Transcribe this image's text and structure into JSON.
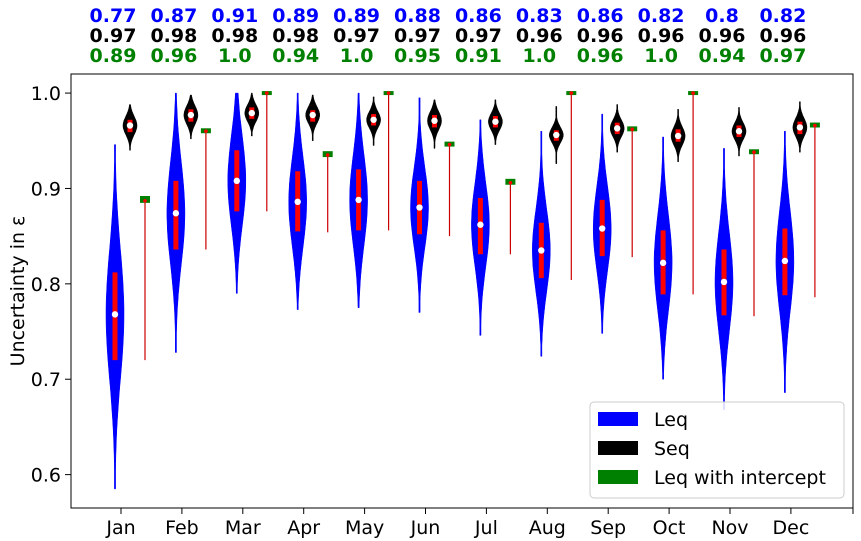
{
  "chart_data": {
    "type": "violin",
    "ylabel": "Uncertainty in ε",
    "ylim": [
      0.565,
      1.02
    ],
    "yticks": [
      "0.6",
      "0.7",
      "0.8",
      "0.9",
      "1.0"
    ],
    "categories": [
      "Jan",
      "Feb",
      "Mar",
      "Apr",
      "May",
      "Jun",
      "Jul",
      "Aug",
      "Sep",
      "Oct",
      "Nov",
      "Dec"
    ],
    "legend": {
      "position": "lower-right",
      "entries": [
        "Leq",
        "Seq",
        "Leq with intercept"
      ]
    },
    "top_stats": [
      {
        "name": "Leq",
        "color": "#0000ff",
        "values": [
          "0.77",
          "0.87",
          "0.91",
          "0.89",
          "0.89",
          "0.88",
          "0.86",
          "0.83",
          "0.86",
          "0.82",
          "0.8",
          "0.82"
        ]
      },
      {
        "name": "Seq",
        "color": "#000000",
        "values": [
          "0.97",
          "0.98",
          "0.98",
          "0.98",
          "0.97",
          "0.97",
          "0.97",
          "0.96",
          "0.96",
          "0.96",
          "0.96",
          "0.96"
        ]
      },
      {
        "name": "Leq with intercept",
        "color": "#008000",
        "values": [
          "0.89",
          "0.96",
          "1.0",
          "0.94",
          "1.0",
          "0.95",
          "0.91",
          "1.0",
          "0.96",
          "1.0",
          "0.94",
          "0.97"
        ]
      }
    ],
    "series": [
      {
        "name": "Leq",
        "color": "#0000ff",
        "min": [
          0.585,
          0.728,
          0.79,
          0.773,
          0.775,
          0.77,
          0.746,
          0.724,
          0.748,
          0.7,
          0.668,
          0.686
        ],
        "q1": [
          0.72,
          0.836,
          0.876,
          0.855,
          0.856,
          0.852,
          0.831,
          0.806,
          0.829,
          0.789,
          0.767,
          0.788
        ],
        "median": [
          0.768,
          0.874,
          0.908,
          0.886,
          0.888,
          0.88,
          0.862,
          0.835,
          0.858,
          0.822,
          0.802,
          0.824
        ],
        "q3": [
          0.812,
          0.908,
          0.94,
          0.918,
          0.92,
          0.908,
          0.89,
          0.864,
          0.888,
          0.856,
          0.836,
          0.858
        ],
        "max": [
          0.946,
          1.0,
          1.0,
          1.0,
          1.0,
          0.995,
          0.972,
          0.96,
          0.978,
          0.954,
          0.942,
          0.96
        ]
      },
      {
        "name": "Seq",
        "color": "#000000",
        "min": [
          0.94,
          0.952,
          0.955,
          0.95,
          0.945,
          0.942,
          0.946,
          0.926,
          0.938,
          0.928,
          0.934,
          0.938
        ],
        "q1": [
          0.959,
          0.97,
          0.973,
          0.97,
          0.966,
          0.964,
          0.964,
          0.95,
          0.957,
          0.949,
          0.954,
          0.957
        ],
        "median": [
          0.966,
          0.977,
          0.979,
          0.977,
          0.972,
          0.971,
          0.97,
          0.956,
          0.963,
          0.955,
          0.96,
          0.964
        ],
        "q3": [
          0.972,
          0.983,
          0.985,
          0.982,
          0.978,
          0.977,
          0.976,
          0.961,
          0.969,
          0.962,
          0.966,
          0.97
        ],
        "max": [
          0.988,
          0.998,
          1.0,
          0.998,
          0.996,
          0.993,
          0.993,
          0.986,
          0.988,
          0.983,
          0.985,
          0.991
        ]
      },
      {
        "name": "Leq with intercept",
        "color": "#008000",
        "min": [
          0.72,
          0.836,
          0.876,
          0.854,
          0.856,
          0.85,
          0.831,
          0.804,
          0.828,
          0.789,
          0.766,
          0.786
        ],
        "median": [
          0.887,
          0.96,
          1.0,
          0.935,
          1.0,
          0.946,
          0.906,
          1.0,
          0.962,
          1.0,
          0.938,
          0.966
        ],
        "max": [
          0.89,
          0.961,
          1.0,
          0.937,
          1.0,
          0.947,
          0.908,
          1.0,
          0.963,
          1.0,
          0.939,
          0.967
        ]
      }
    ]
  }
}
